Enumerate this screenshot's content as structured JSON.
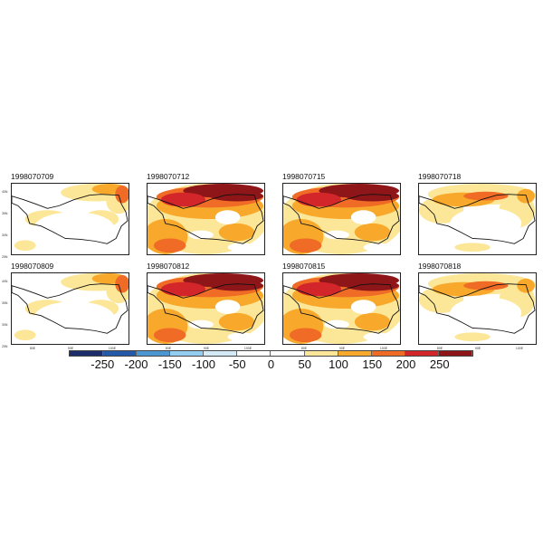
{
  "panels": [
    {
      "title": "1998070709",
      "level": 1
    },
    {
      "title": "1998070712",
      "level": 3
    },
    {
      "title": "1998070715",
      "level": 3
    },
    {
      "title": "1998070718",
      "level": 2
    },
    {
      "title": "1998070809",
      "level": 1
    },
    {
      "title": "1998070812",
      "level": 3
    },
    {
      "title": "1998070815",
      "level": 3
    },
    {
      "title": "1998070818",
      "level": 2
    }
  ],
  "lat_ticks": [
    "40N",
    "35N",
    "30N",
    "25N"
  ],
  "lon_ticks": [
    "80E",
    "90E",
    "100E"
  ],
  "colorbar": {
    "colors": [
      "#1b2d6a",
      "#2458a8",
      "#4a97d1",
      "#93cdef",
      "#d2ebf6",
      "#ffffff",
      "#ffffff",
      "#fce697",
      "#f8a92b",
      "#ef6b26",
      "#d3262a",
      "#8f1618"
    ],
    "labels": [
      "-250",
      "-200",
      "-150",
      "-100",
      "-50",
      "0",
      "50",
      "100",
      "150",
      "200",
      "250"
    ]
  }
}
